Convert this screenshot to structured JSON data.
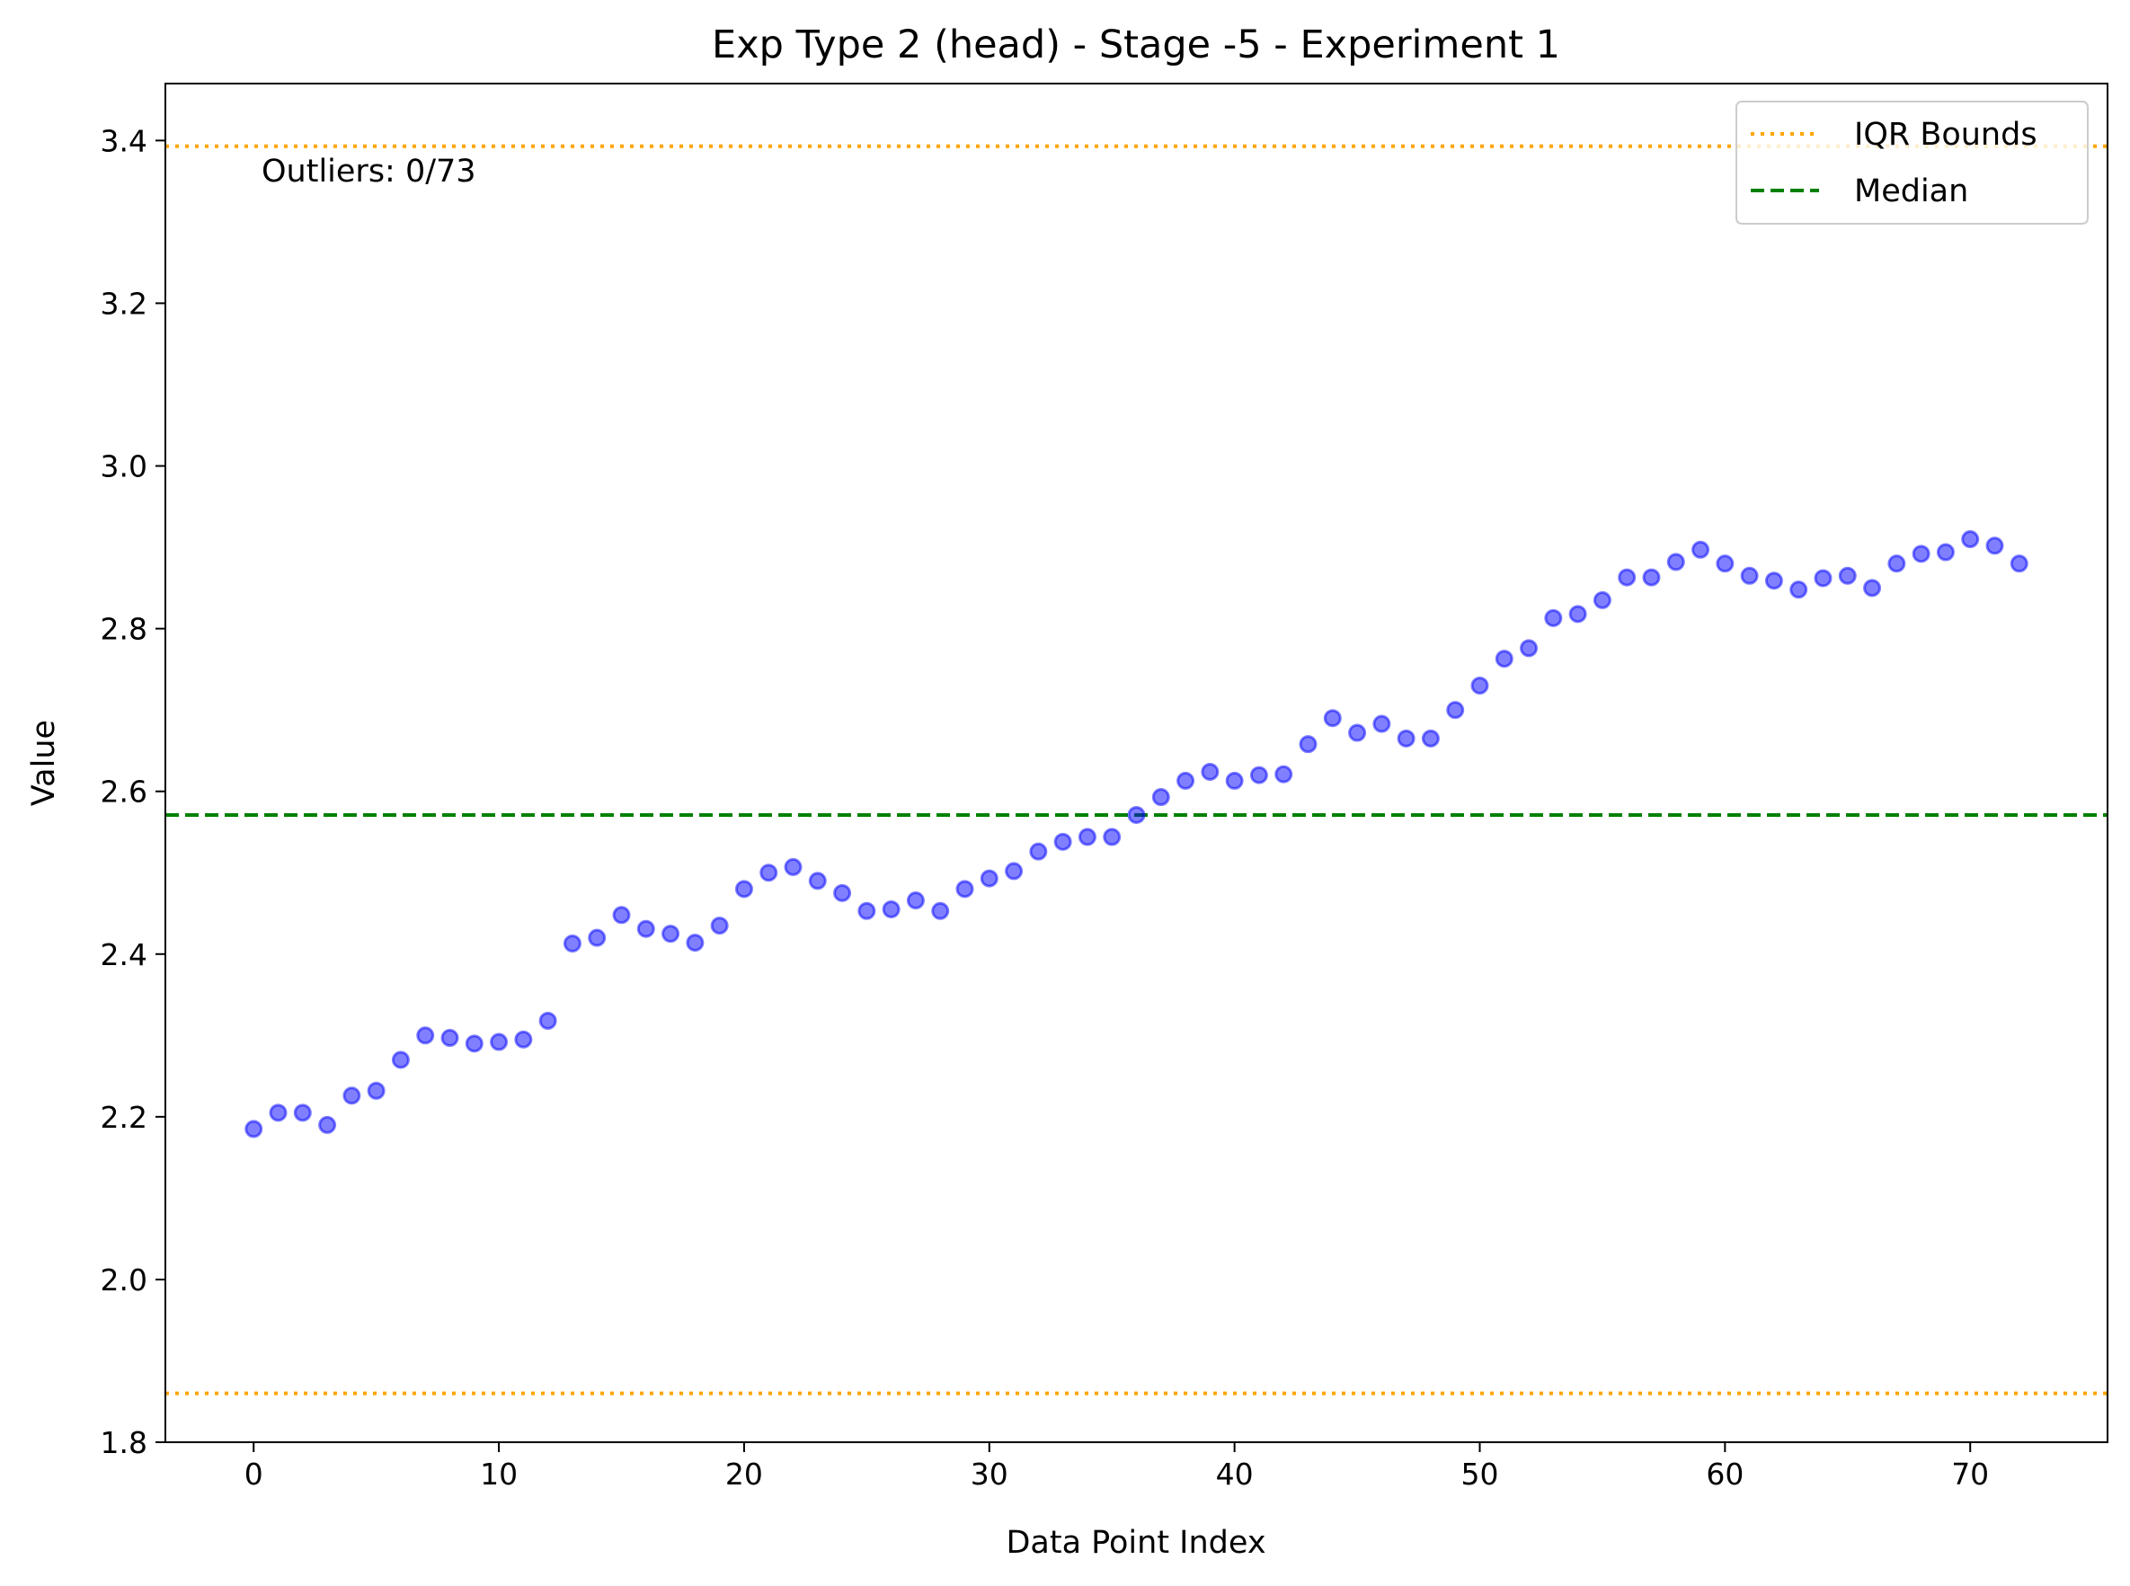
{
  "chart_data": {
    "type": "scatter",
    "title": "Exp Type 2 (head) - Stage -5 - Experiment 1",
    "xlabel": "Data Point Index",
    "ylabel": "Value",
    "xlim": [
      -3.6,
      75.6
    ],
    "ylim": [
      1.8,
      3.47
    ],
    "xticks": [
      0,
      10,
      20,
      30,
      40,
      50,
      60,
      70
    ],
    "yticks": [
      1.8,
      2.0,
      2.2,
      2.4,
      2.6,
      2.8,
      3.0,
      3.2,
      3.4
    ],
    "ytick_labels": [
      "1.8",
      "2.0",
      "2.2",
      "2.4",
      "2.6",
      "2.8",
      "3.0",
      "3.2",
      "3.4"
    ],
    "grid": false,
    "series": [
      {
        "color": "#0000ff",
        "x": [
          0,
          1,
          2,
          3,
          4,
          5,
          6,
          7,
          8,
          9,
          10,
          11,
          12,
          13,
          14,
          15,
          16,
          17,
          18,
          19,
          20,
          21,
          22,
          23,
          24,
          25,
          26,
          27,
          28,
          29,
          30,
          31,
          32,
          33,
          34,
          35,
          36,
          37,
          38,
          39,
          40,
          41,
          42,
          43,
          44,
          45,
          46,
          47,
          48,
          49,
          50,
          51,
          52,
          53,
          54,
          55,
          56,
          57,
          58,
          59,
          60,
          61,
          62,
          63,
          64,
          65,
          66,
          67,
          68,
          69,
          70,
          71,
          72
        ],
        "y": [
          2.185,
          2.205,
          2.205,
          2.19,
          2.226,
          2.232,
          2.27,
          2.3,
          2.297,
          2.29,
          2.292,
          2.295,
          2.318,
          2.413,
          2.42,
          2.448,
          2.431,
          2.425,
          2.414,
          2.435,
          2.48,
          2.5,
          2.507,
          2.49,
          2.475,
          2.453,
          2.455,
          2.466,
          2.453,
          2.48,
          2.493,
          2.502,
          2.526,
          2.538,
          2.544,
          2.544,
          2.571,
          2.593,
          2.613,
          2.624,
          2.613,
          2.62,
          2.621,
          2.658,
          2.69,
          2.672,
          2.683,
          2.665,
          2.665,
          2.7,
          2.73,
          2.763,
          2.776,
          2.813,
          2.818,
          2.835,
          2.863,
          2.863,
          2.882,
          2.897,
          2.88,
          2.865,
          2.859,
          2.848,
          2.862,
          2.865,
          2.85,
          2.88,
          2.892,
          2.894,
          2.91,
          2.902,
          2.88
        ]
      }
    ],
    "reference_lines": [
      {
        "name": "IQR Bounds",
        "y": 3.393,
        "color": "#ffa500",
        "style": "dotted"
      },
      {
        "name": "IQR Bounds",
        "y": 1.86,
        "color": "#ffa500",
        "style": "dotted"
      },
      {
        "name": "Median",
        "y": 2.571,
        "color": "#008000",
        "style": "dashed"
      }
    ],
    "annotation": "Outliers: 0/73",
    "legend": {
      "placement": "top-right",
      "entries": [
        {
          "label": "IQR Bounds",
          "color": "#ffa500",
          "style": "dotted"
        },
        {
          "label": "Median",
          "color": "#008000",
          "style": "dashed"
        }
      ]
    }
  }
}
